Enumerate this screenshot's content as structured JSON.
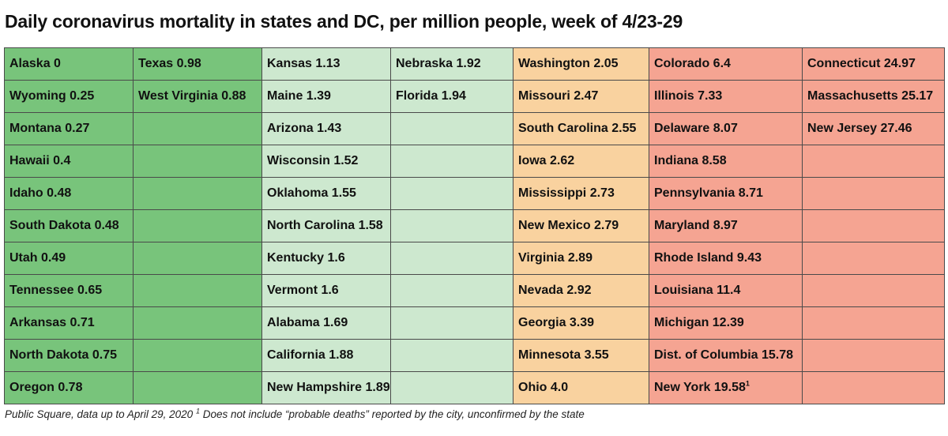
{
  "title": "Daily coronavirus mortality in states and DC, per million people, week of 4/23-29",
  "footnote": "Public Square, data up to April 29, 2020",
  "footnote_marker": "1",
  "footnote_note": " Does not include “probable deaths” reported by the city, unconfirmed by the state",
  "chart_data": {
    "type": "table",
    "unit": "daily deaths per million people",
    "colors": {
      "dark_green": "#78c47b",
      "light_green": "#cde8cf",
      "light_orange": "#f9d29f",
      "salmon": "#f5a492"
    },
    "columns": [
      {
        "color": "dark_green",
        "rows": [
          {
            "label": "Alaska 0",
            "state": "Alaska",
            "value": 0
          },
          {
            "label": "Wyoming 0.25",
            "state": "Wyoming",
            "value": 0.25
          },
          {
            "label": "Montana 0.27",
            "state": "Montana",
            "value": 0.27
          },
          {
            "label": "Hawaii 0.4",
            "state": "Hawaii",
            "value": 0.4
          },
          {
            "label": "Idaho 0.48",
            "state": "Idaho",
            "value": 0.48
          },
          {
            "label": "South Dakota 0.48",
            "state": "South Dakota",
            "value": 0.48
          },
          {
            "label": "Utah 0.49",
            "state": "Utah",
            "value": 0.49
          },
          {
            "label": "Tennessee 0.65",
            "state": "Tennessee",
            "value": 0.65
          },
          {
            "label": "Arkansas 0.71",
            "state": "Arkansas",
            "value": 0.71
          },
          {
            "label": "North Dakota 0.75",
            "state": "North Dakota",
            "value": 0.75
          },
          {
            "label": "Oregon 0.78",
            "state": "Oregon",
            "value": 0.78
          }
        ]
      },
      {
        "color": "dark_green",
        "rows": [
          {
            "label": "Texas 0.98",
            "state": "Texas",
            "value": 0.98
          },
          {
            "label": "West Virginia 0.88",
            "state": "West Virginia",
            "value": 0.88
          }
        ]
      },
      {
        "color": "light_green",
        "rows": [
          {
            "label": "Kansas 1.13",
            "state": "Kansas",
            "value": 1.13
          },
          {
            "label": "Maine 1.39",
            "state": "Maine",
            "value": 1.39
          },
          {
            "label": "Arizona 1.43",
            "state": "Arizona",
            "value": 1.43
          },
          {
            "label": "Wisconsin 1.52",
            "state": "Wisconsin",
            "value": 1.52
          },
          {
            "label": "Oklahoma 1.55",
            "state": "Oklahoma",
            "value": 1.55
          },
          {
            "label": "North Carolina 1.58",
            "state": "North Carolina",
            "value": 1.58
          },
          {
            "label": "Kentucky 1.6",
            "state": "Kentucky",
            "value": 1.6
          },
          {
            "label": "Vermont 1.6",
            "state": "Vermont",
            "value": 1.6
          },
          {
            "label": "Alabama 1.69",
            "state": "Alabama",
            "value": 1.69
          },
          {
            "label": "California 1.88",
            "state": "California",
            "value": 1.88
          },
          {
            "label": "New Hampshire 1.89",
            "state": "New Hampshire",
            "value": 1.89
          }
        ]
      },
      {
        "color": "light_green",
        "rows": [
          {
            "label": "Nebraska 1.92",
            "state": "Nebraska",
            "value": 1.92
          },
          {
            "label": "Florida 1.94",
            "state": "Florida",
            "value": 1.94
          }
        ]
      },
      {
        "color": "light_orange",
        "rows": [
          {
            "label": "Washington 2.05",
            "state": "Washington",
            "value": 2.05
          },
          {
            "label": "Missouri 2.47",
            "state": "Missouri",
            "value": 2.47
          },
          {
            "label": "South Carolina 2.55",
            "state": "South Carolina",
            "value": 2.55
          },
          {
            "label": "Iowa 2.62",
            "state": "Iowa",
            "value": 2.62
          },
          {
            "label": "Mississippi 2.73",
            "state": "Mississippi",
            "value": 2.73
          },
          {
            "label": "New Mexico 2.79",
            "state": "New Mexico",
            "value": 2.79
          },
          {
            "label": "Virginia 2.89",
            "state": "Virginia",
            "value": 2.89
          },
          {
            "label": "Nevada 2.92",
            "state": "Nevada",
            "value": 2.92
          },
          {
            "label": "Georgia 3.39",
            "state": "Georgia",
            "value": 3.39
          },
          {
            "label": "Minnesota 3.55",
            "state": "Minnesota",
            "value": 3.55
          },
          {
            "label": "Ohio 4.0",
            "state": "Ohio",
            "value": 4.0
          }
        ]
      },
      {
        "color": "salmon",
        "rows": [
          {
            "label": "Colorado 6.4",
            "state": "Colorado",
            "value": 6.4
          },
          {
            "label": "Illinois 7.33",
            "state": "Illinois",
            "value": 7.33
          },
          {
            "label": "Delaware 8.07",
            "state": "Delaware",
            "value": 8.07
          },
          {
            "label": "Indiana 8.58",
            "state": "Indiana",
            "value": 8.58
          },
          {
            "label": "Pennsylvania 8.71",
            "state": "Pennsylvania",
            "value": 8.71
          },
          {
            "label": "Maryland 8.97",
            "state": "Maryland",
            "value": 8.97
          },
          {
            "label": "Rhode Island 9.43",
            "state": "Rhode Island",
            "value": 9.43
          },
          {
            "label": "Louisiana 11.4",
            "state": "Louisiana",
            "value": 11.4
          },
          {
            "label": "Michigan 12.39",
            "state": "Michigan",
            "value": 12.39
          },
          {
            "label": "Dist. of Columbia 15.78",
            "state": "Dist. of Columbia",
            "value": 15.78
          },
          {
            "label": "New York 19.58",
            "state": "New York",
            "value": 19.58,
            "marker": "1"
          }
        ]
      },
      {
        "color": "salmon",
        "rows": [
          {
            "label": "Connecticut 24.97",
            "state": "Connecticut",
            "value": 24.97
          },
          {
            "label": "Massachusetts 25.17",
            "state": "Massachusetts",
            "value": 25.17
          },
          {
            "label": "New Jersey 27.46",
            "state": "New Jersey",
            "value": 27.46
          }
        ]
      }
    ]
  }
}
